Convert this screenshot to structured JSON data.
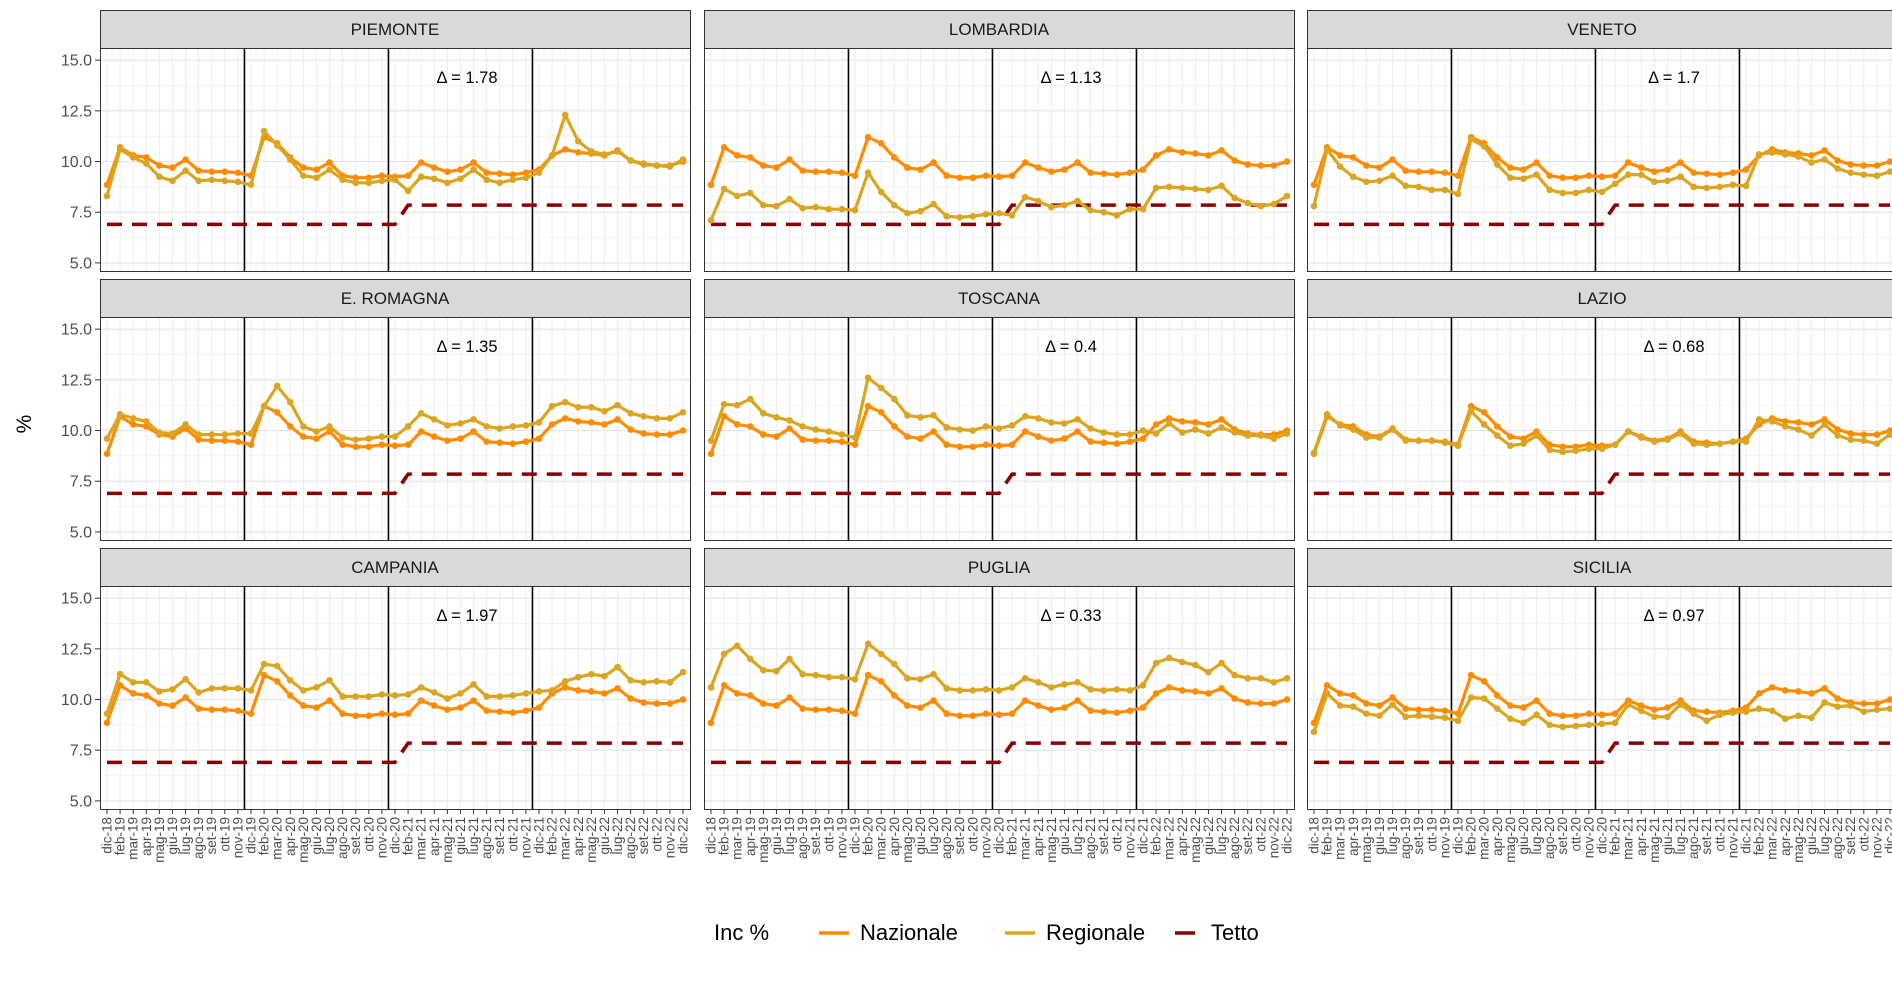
{
  "chart_data": {
    "type": "line",
    "ylabel": "%",
    "xlabel": "",
    "ylim": [
      4.6,
      15.6
    ],
    "yticks": [
      "5.0",
      "7.5",
      "10.0",
      "12.5",
      "15.0"
    ],
    "ytick_values": [
      5.0,
      7.5,
      10.0,
      12.5,
      15.0
    ],
    "grid": true,
    "legend": {
      "title": "Inc %",
      "position": "bottom",
      "entries": [
        {
          "key": "nazionale",
          "label": "Nazionale",
          "color": "#ff8c00"
        },
        {
          "key": "regionale",
          "label": "Regionale",
          "color": "#daa520"
        },
        {
          "key": "tetto",
          "label": "Tetto",
          "color": "#8b0000"
        }
      ]
    },
    "x": [
      "dic-18",
      "feb-19",
      "mar-19",
      "apr-19",
      "mag-19",
      "giu-19",
      "lug-19",
      "ago-19",
      "set-19",
      "ott-19",
      "nov-19",
      "dic-19",
      "feb-20",
      "mar-20",
      "apr-20",
      "mag-20",
      "giu-20",
      "lug-20",
      "ago-20",
      "set-20",
      "ott-20",
      "nov-20",
      "dic-20",
      "feb-21",
      "mar-21",
      "apr-21",
      "mag-21",
      "giu-21",
      "lug-21",
      "ago-21",
      "set-21",
      "ott-21",
      "nov-21",
      "dic-21",
      "feb-22",
      "mar-22",
      "apr-22",
      "mag-22",
      "giu-22",
      "lug-22",
      "ago-22",
      "set-22",
      "ott-22",
      "nov-22",
      "dic-22"
    ],
    "year_boundaries_after_index": [
      10.5,
      21.5,
      32.5
    ],
    "series_colors": {
      "nazionale": "#ff8c00",
      "regionale": "#daa520",
      "tetto": "#8b0000"
    },
    "nazionale": [
      8.85,
      10.7,
      10.3,
      10.2,
      9.8,
      9.7,
      10.1,
      9.55,
      9.5,
      9.5,
      9.45,
      9.3,
      11.2,
      10.9,
      10.2,
      9.7,
      9.6,
      9.95,
      9.3,
      9.2,
      9.2,
      9.3,
      9.25,
      9.3,
      9.95,
      9.7,
      9.5,
      9.6,
      9.95,
      9.45,
      9.4,
      9.35,
      9.45,
      9.6,
      10.3,
      10.6,
      10.45,
      10.4,
      10.3,
      10.55,
      10.05,
      9.85,
      9.8,
      9.8,
      10.0
    ],
    "tetto": [
      6.9,
      6.9,
      6.9,
      6.9,
      6.9,
      6.9,
      6.9,
      6.9,
      6.9,
      6.9,
      6.9,
      6.9,
      6.9,
      6.9,
      6.9,
      6.9,
      6.9,
      6.9,
      6.9,
      6.9,
      6.9,
      6.9,
      6.9,
      7.85,
      7.85,
      7.85,
      7.85,
      7.85,
      7.85,
      7.85,
      7.85,
      7.85,
      7.85,
      7.85,
      7.85,
      7.85,
      7.85,
      7.85,
      7.85,
      7.85,
      7.85,
      7.85,
      7.85,
      7.85,
      7.85
    ],
    "panels": [
      {
        "name": "PIEMONTE",
        "delta": "Δ = 1.78",
        "clipped": false,
        "regionale": [
          8.3,
          10.6,
          10.2,
          9.9,
          9.25,
          9.05,
          9.55,
          9.05,
          9.1,
          9.05,
          9.0,
          8.85,
          11.5,
          10.8,
          10.1,
          9.3,
          9.2,
          9.6,
          9.1,
          8.95,
          8.95,
          9.05,
          9.1,
          8.55,
          9.25,
          9.15,
          8.95,
          9.15,
          9.6,
          9.1,
          8.95,
          9.1,
          9.2,
          9.45,
          10.3,
          12.3,
          11.0,
          10.5,
          10.35,
          10.5,
          10.05,
          9.9,
          9.8,
          9.75,
          10.1
        ]
      },
      {
        "name": "LOMBARDIA",
        "delta": "Δ = 1.13",
        "clipped": false,
        "regionale": [
          7.1,
          8.65,
          8.3,
          8.45,
          7.85,
          7.8,
          8.15,
          7.7,
          7.75,
          7.65,
          7.65,
          7.6,
          9.45,
          8.5,
          7.85,
          7.45,
          7.55,
          7.9,
          7.3,
          7.25,
          7.3,
          7.4,
          7.45,
          7.35,
          8.25,
          8.05,
          7.75,
          7.85,
          8.05,
          7.6,
          7.5,
          7.35,
          7.65,
          7.65,
          8.7,
          8.75,
          8.7,
          8.65,
          8.6,
          8.8,
          8.2,
          7.95,
          7.8,
          7.9,
          8.3
        ]
      },
      {
        "name": "VENETO",
        "delta": "Δ = 1.7",
        "clipped": true,
        "regionale": [
          7.8,
          10.6,
          9.75,
          9.25,
          9.0,
          9.05,
          9.3,
          8.8,
          8.75,
          8.6,
          8.6,
          8.4,
          11.1,
          10.75,
          9.85,
          9.2,
          9.15,
          9.35,
          8.6,
          8.45,
          8.45,
          8.6,
          8.5,
          8.9,
          9.35,
          9.35,
          9.0,
          9.05,
          9.25,
          8.75,
          8.7,
          8.75,
          8.85,
          8.8,
          10.35,
          10.45,
          10.35,
          10.25,
          9.95,
          10.1,
          9.65,
          9.45,
          9.35,
          9.3,
          9.5
        ]
      },
      {
        "name": "E. ROMAGNA",
        "delta": "Δ = 1.35",
        "clipped": false,
        "regionale": [
          9.6,
          10.8,
          10.6,
          10.45,
          9.9,
          9.85,
          10.3,
          9.8,
          9.8,
          9.8,
          9.85,
          9.85,
          11.2,
          12.2,
          11.4,
          10.2,
          9.95,
          10.2,
          9.65,
          9.55,
          9.6,
          9.7,
          9.7,
          10.2,
          10.85,
          10.55,
          10.25,
          10.35,
          10.55,
          10.2,
          10.1,
          10.2,
          10.25,
          10.4,
          11.2,
          11.4,
          11.15,
          11.15,
          10.95,
          11.25,
          10.85,
          10.7,
          10.6,
          10.6,
          10.9
        ]
      },
      {
        "name": "TOSCANA",
        "delta": "Δ = 0.4",
        "clipped": false,
        "regionale": [
          9.5,
          11.3,
          11.25,
          11.55,
          10.85,
          10.65,
          10.5,
          10.2,
          10.05,
          9.95,
          9.8,
          9.65,
          12.6,
          12.1,
          11.55,
          10.75,
          10.65,
          10.75,
          10.15,
          10.05,
          10.0,
          10.2,
          10.1,
          10.25,
          10.7,
          10.6,
          10.4,
          10.35,
          10.55,
          10.1,
          9.9,
          9.8,
          9.8,
          10.0,
          9.85,
          10.35,
          9.9,
          10.05,
          9.85,
          10.15,
          9.9,
          9.75,
          9.75,
          9.6,
          9.85
        ]
      },
      {
        "name": "LAZIO",
        "delta": "Δ = 0.68",
        "clipped": true,
        "regionale": [
          8.9,
          10.8,
          10.25,
          10.05,
          9.65,
          9.65,
          10.05,
          9.5,
          9.5,
          9.5,
          9.4,
          9.25,
          10.95,
          10.3,
          9.75,
          9.25,
          9.35,
          9.75,
          9.05,
          8.95,
          9.0,
          9.1,
          9.1,
          9.3,
          9.95,
          9.65,
          9.45,
          9.55,
          9.85,
          9.35,
          9.3,
          9.35,
          9.45,
          9.45,
          10.55,
          10.45,
          10.2,
          10.05,
          9.75,
          10.3,
          9.75,
          9.55,
          9.5,
          9.35,
          9.8
        ]
      },
      {
        "name": "CAMPANIA",
        "delta": "Δ = 1.97",
        "clipped": false,
        "regionale": [
          9.3,
          11.25,
          10.85,
          10.85,
          10.4,
          10.5,
          11.0,
          10.35,
          10.55,
          10.55,
          10.55,
          10.45,
          11.75,
          11.65,
          10.95,
          10.45,
          10.6,
          10.95,
          10.15,
          10.15,
          10.15,
          10.25,
          10.2,
          10.25,
          10.6,
          10.35,
          10.05,
          10.3,
          10.75,
          10.15,
          10.15,
          10.2,
          10.3,
          10.4,
          10.45,
          10.9,
          11.1,
          11.25,
          11.15,
          11.6,
          10.95,
          10.85,
          10.9,
          10.85,
          11.35
        ]
      },
      {
        "name": "PUGLIA",
        "delta": "Δ = 0.33",
        "clipped": false,
        "regionale": [
          10.6,
          12.25,
          12.65,
          12.0,
          11.45,
          11.4,
          12.0,
          11.25,
          11.2,
          11.1,
          11.1,
          11.0,
          12.75,
          12.25,
          11.75,
          11.05,
          11.0,
          11.25,
          10.55,
          10.45,
          10.45,
          10.5,
          10.45,
          10.6,
          11.05,
          10.85,
          10.6,
          10.75,
          10.85,
          10.5,
          10.45,
          10.5,
          10.45,
          10.7,
          11.8,
          12.05,
          11.85,
          11.7,
          11.35,
          11.8,
          11.2,
          11.05,
          11.05,
          10.85,
          11.05
        ]
      },
      {
        "name": "SICILIA",
        "delta": "Δ = 0.97",
        "clipped": true,
        "regionale": [
          8.4,
          10.3,
          9.7,
          9.65,
          9.3,
          9.2,
          9.75,
          9.15,
          9.2,
          9.15,
          9.1,
          8.95,
          10.1,
          10.05,
          9.55,
          9.05,
          8.85,
          9.25,
          8.75,
          8.65,
          8.7,
          8.75,
          8.8,
          8.85,
          9.75,
          9.45,
          9.15,
          9.15,
          9.75,
          9.3,
          8.95,
          9.25,
          9.35,
          9.4,
          9.55,
          9.45,
          9.05,
          9.2,
          9.1,
          9.85,
          9.65,
          9.7,
          9.4,
          9.5,
          9.55
        ]
      }
    ]
  }
}
